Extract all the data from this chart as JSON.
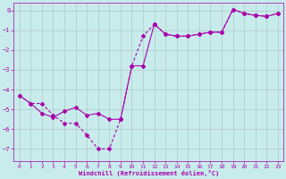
{
  "xlabel": "Windchill (Refroidissement éolien,°C)",
  "background_color": "#c8ecec",
  "grid_color": "#b0c8c8",
  "line_color": "#aa00aa",
  "xlim": [
    -0.5,
    23.5
  ],
  "ylim": [
    -7.6,
    0.4
  ],
  "yticks": [
    0,
    -1,
    -2,
    -3,
    -4,
    -5,
    -6,
    -7
  ],
  "xticks": [
    0,
    1,
    2,
    3,
    4,
    5,
    6,
    7,
    8,
    9,
    10,
    11,
    12,
    13,
    14,
    15,
    16,
    17,
    18,
    19,
    20,
    21,
    22,
    23
  ],
  "line1_x": [
    0,
    1,
    2,
    3,
    4,
    5,
    6,
    7,
    8,
    9,
    10,
    11,
    12,
    13,
    14,
    15,
    16,
    17,
    18,
    19,
    20,
    21,
    22,
    23
  ],
  "line1_y": [
    -4.3,
    -4.7,
    -5.2,
    -5.4,
    -5.1,
    -4.9,
    -5.3,
    -5.2,
    -5.5,
    -5.5,
    -2.8,
    -2.8,
    -0.7,
    -1.2,
    -1.3,
    -1.3,
    -1.2,
    -1.1,
    -1.1,
    0.05,
    -0.15,
    -0.25,
    -0.3,
    -0.15
  ],
  "line2_x": [
    0,
    1,
    2,
    3,
    4,
    5,
    6,
    7,
    8,
    9,
    10,
    11,
    12,
    13,
    14,
    15,
    16,
    17,
    18,
    19,
    20,
    21,
    22,
    23
  ],
  "line2_y": [
    -4.3,
    -4.7,
    -4.7,
    -5.3,
    -5.7,
    -5.7,
    -6.3,
    -7.0,
    -7.0,
    -5.5,
    -2.8,
    -1.3,
    -0.7,
    -1.2,
    -1.3,
    -1.3,
    -1.2,
    -1.1,
    -1.1,
    0.05,
    -0.15,
    -0.25,
    -0.3,
    -0.15
  ]
}
